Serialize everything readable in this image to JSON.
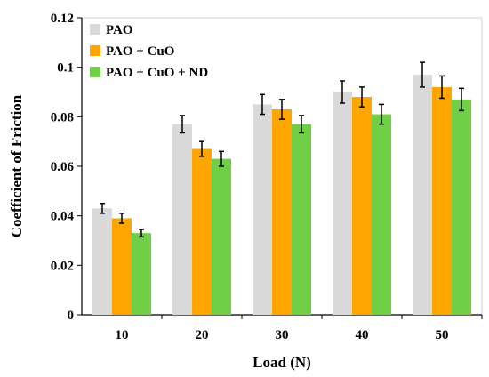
{
  "chart_data": {
    "type": "bar",
    "xlabel": "Load (N)",
    "ylabel": "Coefficient of Friction",
    "categories": [
      "10",
      "20",
      "30",
      "40",
      "50"
    ],
    "ylim": [
      0,
      0.12
    ],
    "yticks": [
      "0",
      "0.02",
      "0.04",
      "0.06",
      "0.08",
      "0.1",
      "0.12"
    ],
    "grid": false,
    "legend_position": "top-left",
    "series": [
      {
        "name": "PAO",
        "color": "#d9d9d9",
        "values": [
          0.043,
          0.077,
          0.085,
          0.09,
          0.097
        ],
        "errors": [
          0.002,
          0.0035,
          0.004,
          0.0045,
          0.005
        ]
      },
      {
        "name": "PAO + CuO",
        "color": "#ffa500",
        "values": [
          0.039,
          0.067,
          0.083,
          0.088,
          0.092
        ],
        "errors": [
          0.002,
          0.003,
          0.004,
          0.004,
          0.0045
        ]
      },
      {
        "name": "PAO + CuO + ND",
        "color": "#6fcf45",
        "values": [
          0.033,
          0.063,
          0.077,
          0.081,
          0.087
        ],
        "errors": [
          0.0015,
          0.003,
          0.0035,
          0.004,
          0.0045
        ]
      }
    ]
  }
}
